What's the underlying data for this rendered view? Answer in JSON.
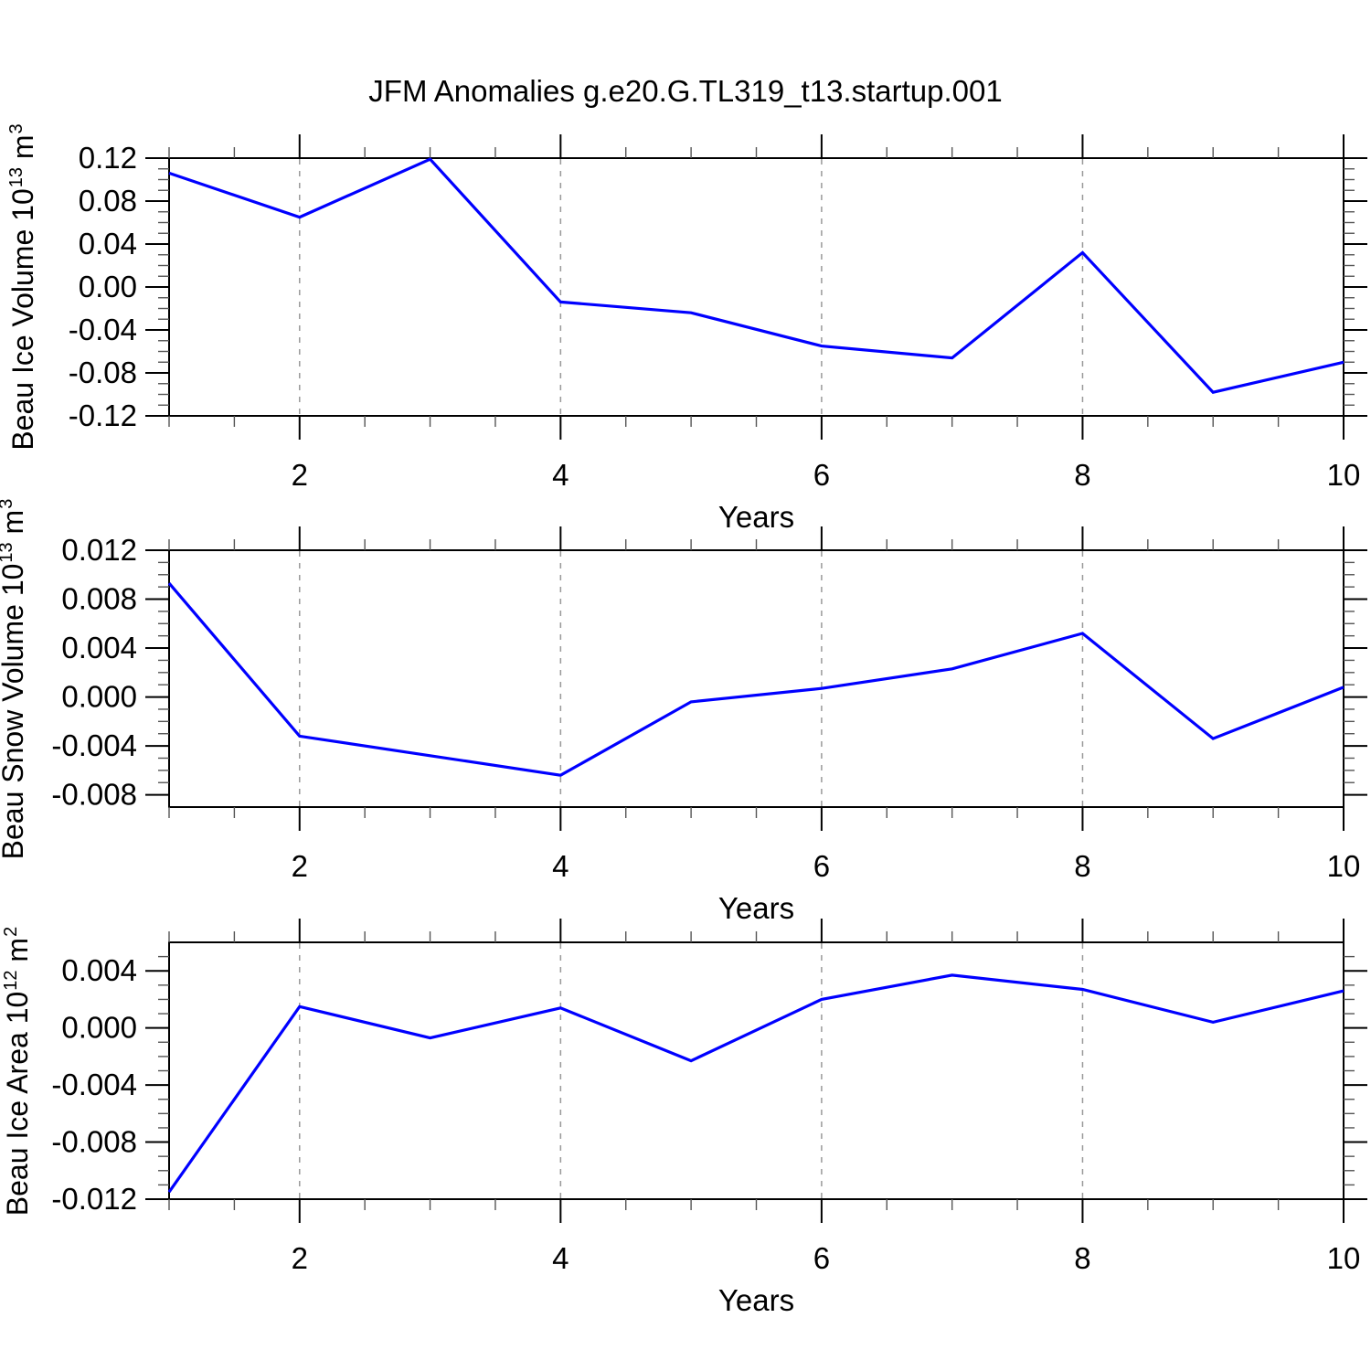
{
  "title": "JFM Anomalies g.e20.G.TL319_t13.startup.001",
  "accent_color": "#0000ff",
  "chart_data": [
    {
      "type": "line",
      "name": "beau-ice-volume",
      "ylabel": "Beau Ice Volume 10^13 m^3",
      "ylabel_segments": [
        {
          "t": "Beau Ice Volume 10"
        },
        {
          "t": "13",
          "sup": true
        },
        {
          "t": " m"
        },
        {
          "t": "3",
          "sup": true
        }
      ],
      "xlabel": "Years",
      "x": [
        1,
        2,
        3,
        4,
        5,
        6,
        7,
        8,
        9,
        10
      ],
      "values": [
        0.106,
        0.065,
        0.119,
        -0.014,
        -0.024,
        -0.055,
        -0.066,
        0.032,
        -0.098,
        -0.07
      ],
      "xlim": [
        1,
        10
      ],
      "ylim": [
        -0.12,
        0.12
      ],
      "yticks": [
        {
          "v": 0.12,
          "label": "0.12"
        },
        {
          "v": 0.08,
          "label": "0.08"
        },
        {
          "v": 0.04,
          "label": "0.04"
        },
        {
          "v": 0.0,
          "label": "0.00"
        },
        {
          "v": -0.04,
          "label": "-0.04"
        },
        {
          "v": -0.08,
          "label": "-0.08"
        },
        {
          "v": -0.12,
          "label": "-0.12"
        }
      ],
      "yminor_step": 0.01,
      "xticks": [
        {
          "v": 2,
          "label": "2"
        },
        {
          "v": 4,
          "label": "4"
        },
        {
          "v": 6,
          "label": "6"
        },
        {
          "v": 8,
          "label": "8"
        },
        {
          "v": 10,
          "label": "10"
        }
      ],
      "xminor_step": 0.5,
      "grid_x": [
        2,
        4,
        6,
        8
      ],
      "grid_on": true,
      "legend": "none",
      "line_color": "#0000ff"
    },
    {
      "type": "line",
      "name": "beau-snow-volume",
      "ylabel": "Beau Snow Volume 10^13 m^3",
      "ylabel_segments": [
        {
          "t": "Beau Snow Volume 10"
        },
        {
          "t": "13",
          "sup": true
        },
        {
          "t": " m"
        },
        {
          "t": "3",
          "sup": true
        }
      ],
      "xlabel": "Years",
      "x": [
        1,
        2,
        3,
        4,
        5,
        6,
        7,
        8,
        9,
        10
      ],
      "values": [
        0.0093,
        -0.0032,
        -0.0048,
        -0.0064,
        -0.0004,
        0.0007,
        0.0023,
        0.0052,
        -0.0034,
        0.0008
      ],
      "xlim": [
        1,
        10
      ],
      "ylim": [
        -0.009,
        0.012
      ],
      "yticks": [
        {
          "v": 0.012,
          "label": "0.012"
        },
        {
          "v": 0.008,
          "label": "0.008"
        },
        {
          "v": 0.004,
          "label": "0.004"
        },
        {
          "v": 0.0,
          "label": "0.000"
        },
        {
          "v": -0.004,
          "label": "-0.004"
        },
        {
          "v": -0.008,
          "label": "-0.008"
        }
      ],
      "yminor_step": 0.001,
      "xticks": [
        {
          "v": 2,
          "label": "2"
        },
        {
          "v": 4,
          "label": "4"
        },
        {
          "v": 6,
          "label": "6"
        },
        {
          "v": 8,
          "label": "8"
        },
        {
          "v": 10,
          "label": "10"
        }
      ],
      "xminor_step": 0.5,
      "grid_x": [
        2,
        4,
        6,
        8
      ],
      "grid_on": true,
      "legend": "none",
      "line_color": "#0000ff"
    },
    {
      "type": "line",
      "name": "beau-ice-area",
      "ylabel": "Beau Ice Area 10^12 m^2",
      "ylabel_segments": [
        {
          "t": "Beau Ice Area 10"
        },
        {
          "t": "12",
          "sup": true
        },
        {
          "t": " m"
        },
        {
          "t": "2",
          "sup": true
        }
      ],
      "xlabel": "Years",
      "x": [
        1,
        2,
        3,
        4,
        5,
        6,
        7,
        8,
        9,
        10
      ],
      "values": [
        -0.0115,
        0.0015,
        -0.0007,
        0.0014,
        -0.0023,
        0.002,
        0.0037,
        0.0027,
        0.0004,
        0.0026
      ],
      "xlim": [
        1,
        10
      ],
      "ylim": [
        -0.012,
        0.006
      ],
      "yticks": [
        {
          "v": 0.004,
          "label": "0.004"
        },
        {
          "v": 0.0,
          "label": "0.000"
        },
        {
          "v": -0.004,
          "label": "-0.004"
        },
        {
          "v": -0.008,
          "label": "-0.008"
        },
        {
          "v": -0.012,
          "label": "-0.012"
        }
      ],
      "yminor_step": 0.001,
      "xticks": [
        {
          "v": 2,
          "label": "2"
        },
        {
          "v": 4,
          "label": "4"
        },
        {
          "v": 6,
          "label": "6"
        },
        {
          "v": 8,
          "label": "8"
        },
        {
          "v": 10,
          "label": "10"
        }
      ],
      "xminor_step": 0.5,
      "grid_x": [
        2,
        4,
        6,
        8
      ],
      "grid_on": true,
      "legend": "none",
      "line_color": "#0000ff"
    }
  ]
}
